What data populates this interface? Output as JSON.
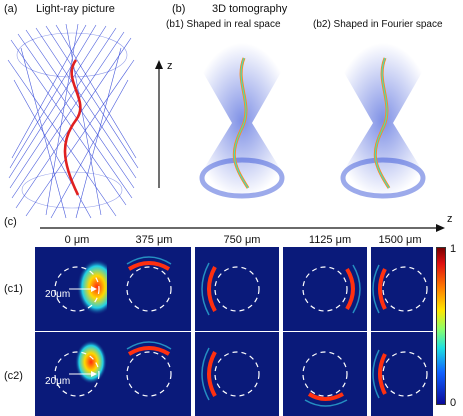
{
  "panel_a": {
    "label": "(a)",
    "title": "Light-ray picture"
  },
  "panel_b": {
    "label": "(b)",
    "title": "3D tomography",
    "b1_title": "(b1) Shaped in real space",
    "b2_title": "(b2) Shaped in Fourier space",
    "z_axis": "z"
  },
  "panel_c": {
    "label": "(c)",
    "z_axis": "z",
    "positions": [
      "0 μm",
      "375 μm",
      "750 μm",
      "1125 μm",
      "1500 μm"
    ],
    "rows": [
      "(c1)",
      "(c2)"
    ],
    "scale_annotation": "20μm",
    "colorbar": {
      "max": "1",
      "min": "0"
    }
  },
  "colors": {
    "ray_blue": "#2a3fd6",
    "curve_red": "#e02020",
    "panel_bg": "#0a1a7a"
  }
}
